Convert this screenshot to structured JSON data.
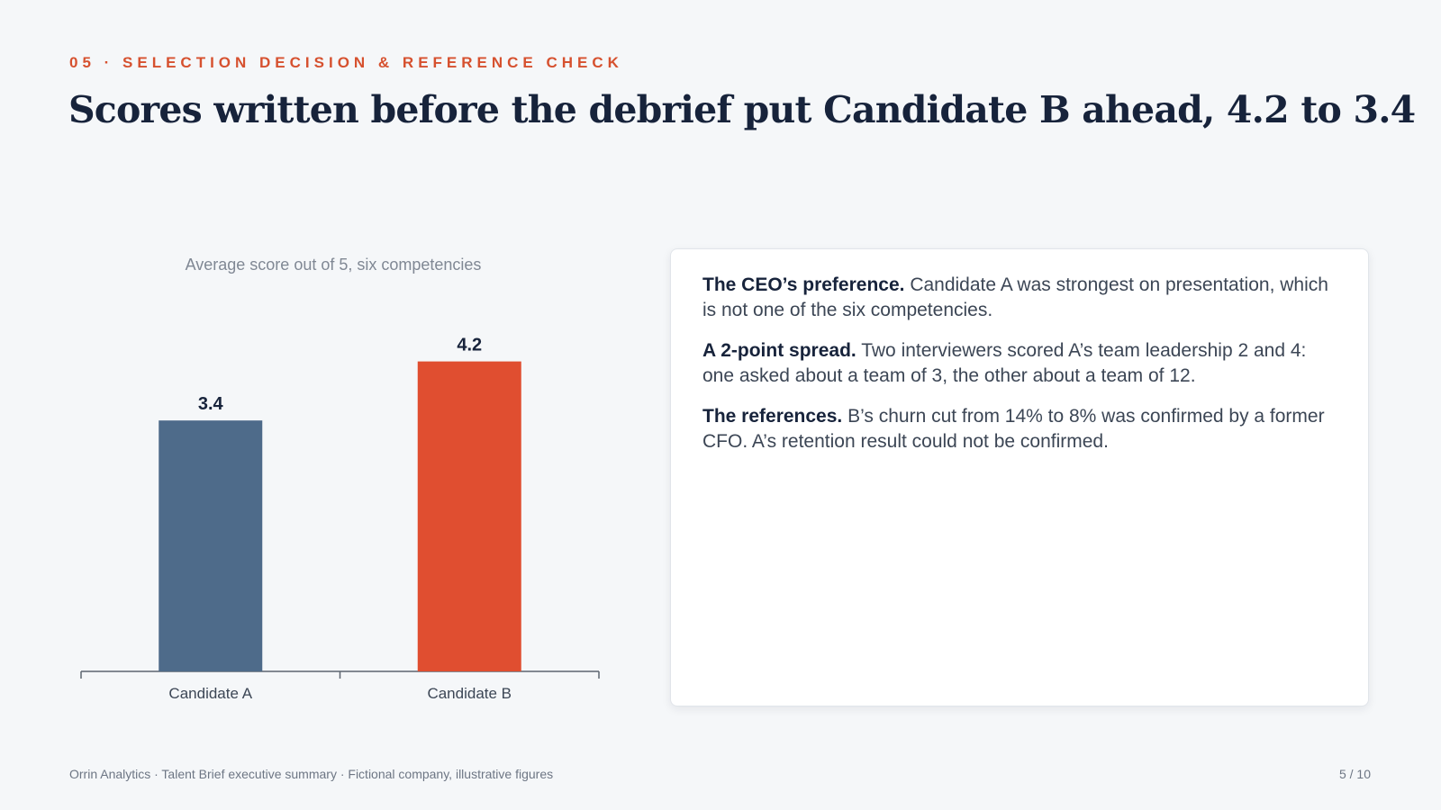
{
  "slide": {
    "kicker": "05 · SELECTION DECISION & REFERENCE CHECK",
    "title": "Scores written before the debrief put Candidate B ahead, 4.2 to 3.4",
    "footer": "Orrin Analytics · Talent Brief executive summary · Fictional company, illustrative figures",
    "page": "5 / 10"
  },
  "notes": [
    {
      "lead": "The CEO’s preference.",
      "text": "Candidate A was strongest on presentation, which is not one of the six competencies."
    },
    {
      "lead": "A 2-point spread.",
      "text": "Two interviewers scored A’s team leadership 2 and 4: one asked about a team of 3, the other about a team of 12."
    },
    {
      "lead": "The references.",
      "text": "B’s churn cut from 14% to 8% was confirmed by a former CFO. A’s retention result could not be confirmed."
    }
  ],
  "chart_data": {
    "type": "bar",
    "title": "Average score out of 5, six competencies",
    "categories": [
      "Candidate A",
      "Candidate B"
    ],
    "values": [
      3.4,
      4.2
    ],
    "data_labels": [
      "3.4",
      "4.2"
    ],
    "colors": [
      "#4e6b8a",
      "#e04e30"
    ],
    "ylim": [
      0,
      5
    ],
    "grid": false,
    "legend": "none",
    "xlabel": "",
    "ylabel": ""
  }
}
